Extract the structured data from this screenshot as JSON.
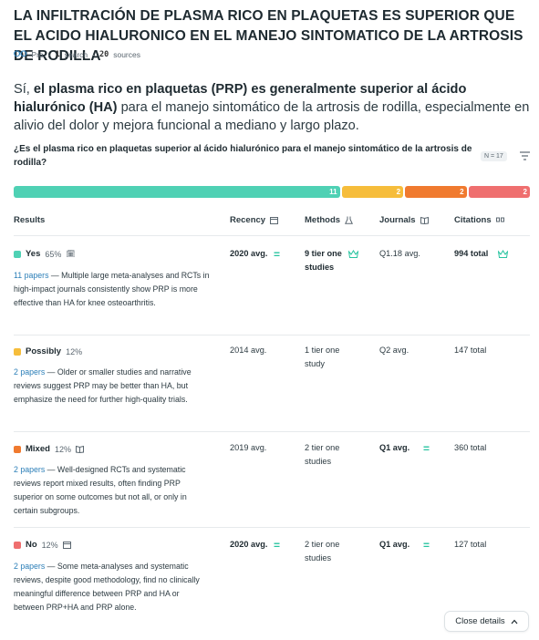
{
  "title": "LA INFILTRACIÓN DE PLASMA RICO EN PLAQUETAS ES SUPERIOR QUE EL ACIDO HIALURONICO EN EL MANEJO SINTOMATICO DE LA ARTROSIS DE RODILLA",
  "meta": {
    "mode": "Pro",
    "searches_count": "1",
    "searches_label": "search",
    "sources_count": "20",
    "sources_label": "sources"
  },
  "answer": {
    "lead": "Sí, ",
    "bold": "el plasma rico en plaquetas (PRP) es generalmente superior al ácido hialurónico (HA)",
    "rest": " para el manejo sintomático de la artrosis de rodilla, especialmente en alivio del dolor y mejora funcional a mediano y largo plazo."
  },
  "question": "¿Es el plasma rico en plaquetas superior al ácido hialurónico para el manejo sintomático de la artrosis de rodilla?",
  "n_badge": "N = 17",
  "distribution": [
    {
      "label": "11",
      "value": 11,
      "color": "#4fd1b4"
    },
    {
      "label": "2",
      "value": 2,
      "color": "#f6bd3b"
    },
    {
      "label": "2",
      "value": 2,
      "color": "#f07a2f"
    },
    {
      "label": "2",
      "value": 2,
      "color": "#ef6f6f"
    }
  ],
  "columns": {
    "results": "Results",
    "recency": "Recency",
    "methods": "Methods",
    "journals": "Journals",
    "citations": "Citations"
  },
  "rows": [
    {
      "label": "Yes",
      "pct": "65%",
      "color": "#4fd1b4",
      "papers": "11 papers",
      "desc": " — Multiple large meta-analyses and RCTs in high-impact journals consistently show PRP is more effective than HA for knee osteoarthritis.",
      "recency": "2020 avg.",
      "methods": "9 tier one studies",
      "journals": "Q1.18 avg.",
      "citations": "994 total"
    },
    {
      "label": "Possibly",
      "pct": "12%",
      "color": "#f6bd3b",
      "papers": "2 papers",
      "desc": " — Older or smaller studies and narrative reviews suggest PRP may be better than HA, but emphasize the need for further high-quality trials.",
      "recency": "2014 avg.",
      "methods": "1 tier one study",
      "journals": "Q2 avg.",
      "citations": "147 total"
    },
    {
      "label": "Mixed",
      "pct": "12%",
      "color": "#f07a2f",
      "papers": "2 papers",
      "desc": " — Well-designed RCTs and systematic reviews report mixed results, often finding PRP superior on some outcomes but not all, or only in certain subgroups.",
      "recency": "2019 avg.",
      "methods": "2 tier one studies",
      "journals": "Q1 avg.",
      "citations": "360 total"
    },
    {
      "label": "No",
      "pct": "12%",
      "color": "#ef6f6f",
      "papers": "2 papers",
      "desc": " — Some meta-analyses and systematic reviews, despite good methodology, find no clinically meaningful difference between PRP and HA or between PRP+HA and PRP alone.",
      "recency": "2020 avg.",
      "methods": "2 tier one studies",
      "journals": "Q1 avg.",
      "citations": "127 total"
    }
  ],
  "close_details": "Close details"
}
